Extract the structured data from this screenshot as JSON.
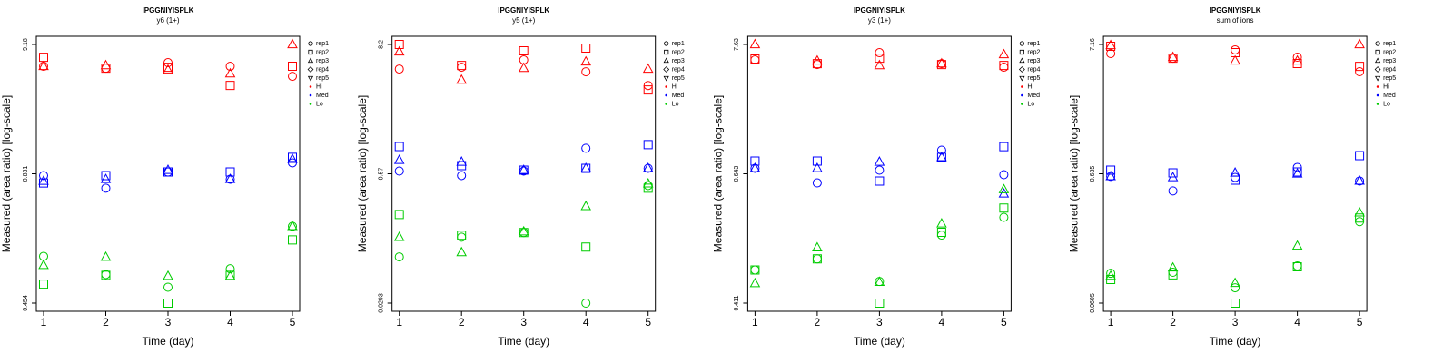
{
  "chart_data": [
    {
      "type": "scatter",
      "title": "IPGGNIYISPLK",
      "subtitle": "y6 (1+)",
      "x_label": "Time (day)",
      "y_label": "Measured (area ratio) [log-scale]",
      "x": [
        1,
        2,
        3,
        4,
        5
      ],
      "xlim": [
        1,
        5
      ],
      "xticks": [
        1,
        2,
        3,
        4,
        5
      ],
      "ylim": [
        0.454,
        9.18
      ],
      "yticks": [
        0.454,
        0.831,
        9.18
      ],
      "log_scale": true,
      "legend_position": "right",
      "markers": [
        {
          "name": "rep1",
          "shape": "circle"
        },
        {
          "name": "rep2",
          "shape": "square"
        },
        {
          "name": "rep3",
          "shape": "triangle-up"
        },
        {
          "name": "rep4",
          "shape": "diamond"
        },
        {
          "name": "rep5",
          "shape": "triangle-down"
        }
      ],
      "groups": [
        {
          "name": "Hi",
          "color": "#ff0000",
          "series": [
            {
              "name": "rep1",
              "values": [
                6.12,
                5.91,
                6.55,
                6.12,
                5.08
              ]
            },
            {
              "name": "rep2",
              "values": [
                7.24,
                5.91,
                6.01,
                4.29,
                6.12
              ]
            },
            {
              "name": "rep3",
              "values": [
                6.12,
                6.22,
                5.72,
                5.34,
                9.18
              ]
            }
          ]
        },
        {
          "name": "Med",
          "color": "#0000ff",
          "series": [
            {
              "name": "rep1",
              "values": [
                0.824,
                0.777,
                0.859,
                0.81,
                1.018
              ]
            },
            {
              "name": "rep2",
              "values": [
                0.796,
                0.824,
                0.859,
                0.859,
                1.127
              ]
            },
            {
              "name": "rep3",
              "values": [
                0.803,
                0.81,
                0.889,
                0.81,
                1.089
              ]
            }
          ]
        },
        {
          "name": "Lo",
          "color": "#00cc00",
          "series": [
            {
              "name": "rep1",
              "values": [
                0.565,
                0.519,
                0.489,
                0.533,
                0.65
              ]
            },
            {
              "name": "rep2",
              "values": [
                0.496,
                0.517,
                0.454,
                0.517,
                0.61
              ]
            },
            {
              "name": "rep3",
              "values": [
                0.542,
                0.563,
                0.515,
                0.515,
                0.65
              ]
            }
          ]
        }
      ]
    },
    {
      "type": "scatter",
      "title": "IPGGNIYISPLK",
      "subtitle": "y5 (1+)",
      "x_label": "Time (day)",
      "y_label": "Measured (area ratio) [log-scale]",
      "x": [
        1,
        2,
        3,
        4,
        5
      ],
      "xlim": [
        1,
        5
      ],
      "xticks": [
        1,
        2,
        3,
        4,
        5
      ],
      "ylim": [
        0.0293,
        8.2
      ],
      "yticks": [
        0.0293,
        0.57,
        8.2
      ],
      "log_scale": true,
      "legend_position": "right",
      "markers": [
        {
          "name": "rep1",
          "shape": "circle"
        },
        {
          "name": "rep2",
          "shape": "square"
        },
        {
          "name": "rep3",
          "shape": "triangle-up"
        },
        {
          "name": "rep4",
          "shape": "diamond"
        },
        {
          "name": "rep5",
          "shape": "triangle-down"
        }
      ],
      "groups": [
        {
          "name": "Hi",
          "color": "#ff0000",
          "series": [
            {
              "name": "rep1",
              "values": [
                4.94,
                5.13,
                5.96,
                4.67,
                3.52
              ]
            },
            {
              "name": "rep2",
              "values": [
                8.2,
                5.32,
                7.19,
                7.61,
                3.21
              ]
            },
            {
              "name": "rep3",
              "values": [
                7.06,
                3.94,
                5.03,
                5.74,
                4.94
              ]
            }
          ]
        },
        {
          "name": "Med",
          "color": "#0000ff",
          "series": [
            {
              "name": "rep1",
              "values": [
                0.603,
                0.547,
                0.603,
                0.965,
                0.638
              ]
            },
            {
              "name": "rep2",
              "values": [
                1.0,
                0.675,
                0.614,
                0.638,
                1.04
              ]
            },
            {
              "name": "rep3",
              "values": [
                0.755,
                0.727,
                0.614,
                0.638,
                0.638
              ]
            }
          ]
        },
        {
          "name": "Lo",
          "color": "#00cc00",
          "series": [
            {
              "name": "rep1",
              "values": [
                0.0846,
                0.133,
                0.148,
                0.0293,
                0.435
              ]
            },
            {
              "name": "rep2",
              "values": [
                0.224,
                0.139,
                0.148,
                0.106,
                0.409
              ]
            },
            {
              "name": "rep3",
              "values": [
                0.133,
                0.0937,
                0.151,
                0.27,
                0.454
              ]
            }
          ]
        }
      ]
    },
    {
      "type": "scatter",
      "title": "IPGGNIYISPLK",
      "subtitle": "y3 (1+)",
      "x_label": "Time (day)",
      "y_label": "Measured (area ratio) [log-scale]",
      "x": [
        1,
        2,
        3,
        4,
        5
      ],
      "xlim": [
        1,
        5
      ],
      "xticks": [
        1,
        2,
        3,
        4,
        5
      ],
      "ylim": [
        0.411,
        7.63
      ],
      "yticks": [
        0.411,
        0.643,
        7.63
      ],
      "log_scale": true,
      "legend_position": "right",
      "markers": [
        {
          "name": "rep1",
          "shape": "circle"
        },
        {
          "name": "rep2",
          "shape": "square"
        },
        {
          "name": "rep3",
          "shape": "triangle-up"
        },
        {
          "name": "rep4",
          "shape": "diamond"
        },
        {
          "name": "rep5",
          "shape": "triangle-down"
        }
      ],
      "groups": [
        {
          "name": "Hi",
          "color": "#ff0000",
          "series": [
            {
              "name": "rep1",
              "values": [
                5.68,
                5.2,
                6.52,
                5.29,
                4.94
              ]
            },
            {
              "name": "rep2",
              "values": [
                5.78,
                5.29,
                5.87,
                5.2,
                5.11
              ]
            },
            {
              "name": "rep3",
              "values": [
                7.63,
                5.58,
                5.11,
                5.29,
                6.3
              ]
            }
          ]
        },
        {
          "name": "Med",
          "color": "#0000ff",
          "series": [
            {
              "name": "rep1",
              "values": [
                0.714,
                0.623,
                0.689,
                1.01,
                0.641
              ]
            },
            {
              "name": "rep2",
              "values": [
                0.82,
                0.82,
                0.627,
                0.88,
                1.08
              ]
            },
            {
              "name": "rep3",
              "values": [
                0.714,
                0.714,
                0.806,
                0.88,
                0.6
              ]
            }
          ]
        },
        {
          "name": "Lo",
          "color": "#00cc00",
          "series": [
            {
              "name": "rep1",
              "values": [
                0.461,
                0.479,
                0.443,
                0.52,
                0.553
              ]
            },
            {
              "name": "rep2",
              "values": [
                0.461,
                0.479,
                0.411,
                0.525,
                0.571
              ]
            },
            {
              "name": "rep3",
              "values": [
                0.44,
                0.498,
                0.442,
                0.541,
                0.609
              ]
            }
          ]
        }
      ]
    },
    {
      "type": "scatter",
      "title": "IPGGNIYISPLK",
      "subtitle": "sum of ions",
      "x_label": "Time (day)",
      "y_label": "Measured (area ratio) [log-scale]",
      "x": [
        1,
        2,
        3,
        4,
        5
      ],
      "xlim": [
        1,
        5
      ],
      "xticks": [
        1,
        2,
        3,
        4,
        5
      ],
      "ylim": [
        0.0605,
        7.16
      ],
      "yticks": [
        0.0605,
        0.635,
        7.16
      ],
      "log_scale": true,
      "legend_position": "right",
      "markers": [
        {
          "name": "rep1",
          "shape": "circle"
        },
        {
          "name": "rep2",
          "shape": "square"
        },
        {
          "name": "rep3",
          "shape": "triangle-up"
        },
        {
          "name": "rep4",
          "shape": "diamond"
        },
        {
          "name": "rep5",
          "shape": "triangle-down"
        }
      ],
      "groups": [
        {
          "name": "Hi",
          "color": "#ff0000",
          "series": [
            {
              "name": "rep1",
              "values": [
                6.04,
                5.54,
                6.47,
                5.64,
                4.3
              ]
            },
            {
              "name": "rep2",
              "values": [
                6.92,
                5.54,
                6.14,
                5.01,
                4.75
              ]
            },
            {
              "name": "rep3",
              "values": [
                7.04,
                5.64,
                5.27,
                5.27,
                7.16
              ]
            }
          ]
        },
        {
          "name": "Med",
          "color": "#0000ff",
          "series": [
            {
              "name": "rep1",
              "values": [
                0.605,
                0.465,
                0.594,
                0.716,
                0.557
              ]
            },
            {
              "name": "rep2",
              "values": [
                0.68,
                0.646,
                0.566,
                0.657,
                0.893
              ]
            },
            {
              "name": "rep3",
              "values": [
                0.605,
                0.594,
                0.646,
                0.635,
                0.557
              ]
            }
          ]
        },
        {
          "name": "Lo",
          "color": "#00cc00",
          "series": [
            {
              "name": "rep1",
              "values": [
                0.104,
                0.106,
                0.08,
                0.119,
                0.266
              ]
            },
            {
              "name": "rep2",
              "values": [
                0.0929,
                0.101,
                0.0605,
                0.117,
                0.284
              ]
            },
            {
              "name": "rep3",
              "values": [
                0.099,
                0.115,
                0.0869,
                0.171,
                0.313
              ]
            }
          ]
        }
      ]
    }
  ]
}
